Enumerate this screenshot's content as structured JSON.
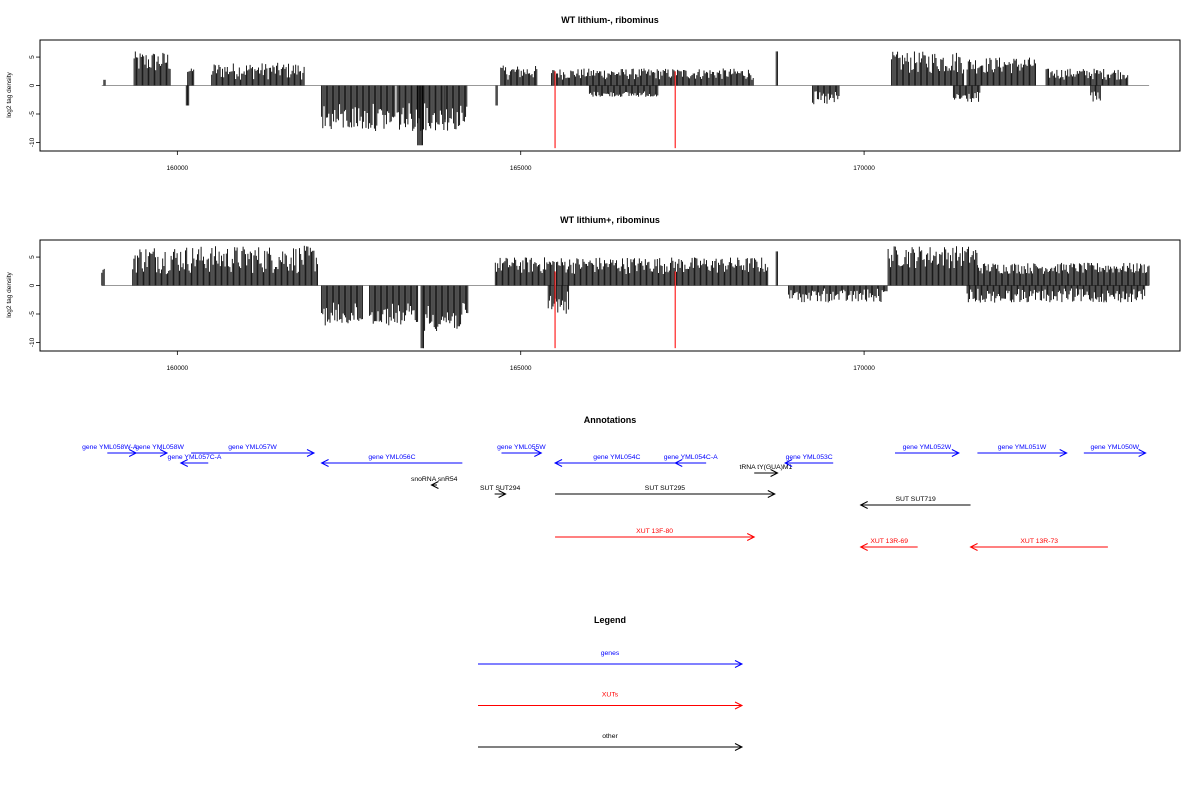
{
  "panels": [
    {
      "title": "WT lithium-, ribominus",
      "ylabel": "log2 tag density",
      "x_ticks": [
        160000,
        165000,
        170000
      ],
      "y_ticks": [
        5,
        0,
        -5,
        -10
      ]
    },
    {
      "title": "WT lithium+, ribominus",
      "ylabel": "log2 tag density",
      "x_ticks": [
        160000,
        165000,
        170000
      ],
      "y_ticks": [
        5,
        0,
        -5,
        -10
      ]
    }
  ],
  "annotations": {
    "title": "Annotations",
    "items": [
      {
        "label": "gene YML058W-A",
        "kind": "gene",
        "strand": "+",
        "start": 158980,
        "end": 159400
      },
      {
        "label": "gene YML058W",
        "kind": "gene",
        "strand": "+",
        "start": 159400,
        "end": 159850
      },
      {
        "label": "gene YML057W",
        "kind": "gene",
        "strand": "+",
        "start": 160200,
        "end": 161990
      },
      {
        "label": "gene YML057C-A",
        "kind": "gene",
        "strand": "-",
        "start": 160050,
        "end": 160450
      },
      {
        "label": "gene YML056C",
        "kind": "gene",
        "strand": "-",
        "start": 162100,
        "end": 164150
      },
      {
        "label": "snoRNA snR54",
        "kind": "other",
        "strand": "-",
        "start": 163700,
        "end": 163780
      },
      {
        "label": "SUT SUT294",
        "kind": "other",
        "strand": "+",
        "start": 164620,
        "end": 164780
      },
      {
        "label": "gene YML055W",
        "kind": "gene",
        "strand": "+",
        "start": 164720,
        "end": 165300
      },
      {
        "label": "gene YML054C",
        "kind": "gene",
        "strand": "-",
        "start": 165500,
        "end": 167300
      },
      {
        "label": "gene YML054C-A",
        "kind": "gene",
        "strand": "-",
        "start": 167250,
        "end": 167700
      },
      {
        "label": "SUT SUT295",
        "kind": "other",
        "strand": "+",
        "start": 165500,
        "end": 168700
      },
      {
        "label": "tRNA tY(GUA)M1",
        "kind": "other",
        "strand": "+",
        "start": 168400,
        "end": 168740
      },
      {
        "label": "gene YML053C",
        "kind": "gene",
        "strand": "-",
        "start": 168850,
        "end": 169550
      },
      {
        "label": "SUT SUT719",
        "kind": "other",
        "strand": "-",
        "start": 169950,
        "end": 171550
      },
      {
        "label": "XUT 13F-80",
        "kind": "xut",
        "strand": "+",
        "start": 165500,
        "end": 168400
      },
      {
        "label": "XUT 13R-69",
        "kind": "xut",
        "strand": "-",
        "start": 169950,
        "end": 170780
      },
      {
        "label": "XUT 13R-73",
        "kind": "xut",
        "strand": "-",
        "start": 171550,
        "end": 173550
      },
      {
        "label": "gene YML052W",
        "kind": "gene",
        "strand": "+",
        "start": 170450,
        "end": 171380
      },
      {
        "label": "gene YML051W",
        "kind": "gene",
        "strand": "+",
        "start": 171650,
        "end": 172950
      },
      {
        "label": "gene YML050W",
        "kind": "gene",
        "strand": "+",
        "start": 173200,
        "end": 174100
      }
    ]
  },
  "legend": {
    "title": "Legend",
    "entries": [
      {
        "label": "genes",
        "kind": "gene"
      },
      {
        "label": "XUTs",
        "kind": "xut"
      },
      {
        "label": "other",
        "kind": "other"
      }
    ]
  },
  "colors": {
    "gene": "#0000ff",
    "xut": "#ff0000",
    "other": "#000000",
    "density_bar": "#000000",
    "highlight_line": "#ff3333",
    "baseline": "#999999"
  },
  "chart_data": [
    {
      "type": "bar",
      "title": "WT lithium-, ribominus",
      "ylabel": "log2 tag density",
      "xlim": [
        158000,
        174600
      ],
      "ylim": [
        -11.5,
        8
      ],
      "x_ticks": [
        160000,
        165000,
        170000
      ],
      "y_ticks": [
        5,
        0,
        -5,
        -10
      ],
      "highlight_positions": [
        165500,
        167250
      ],
      "highlight_range": [
        -11,
        2.5
      ],
      "series": [
        {
          "strand": "+",
          "segments": [
            {
              "x": [
                158930,
                158960
              ],
              "y": [
                1,
                1
              ]
            },
            {
              "x": [
                159370,
                159900
              ],
              "y": [
                2,
                6
              ]
            },
            {
              "x": [
                160150,
                160250
              ],
              "y": [
                2,
                3
              ]
            },
            {
              "x": [
                160500,
                161850
              ],
              "y": [
                1,
                4
              ]
            },
            {
              "x": [
                164710,
                165250
              ],
              "y": [
                1,
                3.5
              ]
            },
            {
              "x": [
                165450,
                168400
              ],
              "y": [
                1,
                3
              ]
            },
            {
              "x": [
                168720,
                168750
              ],
              "y": [
                6,
                6
              ]
            },
            {
              "x": [
                170400,
                171450
              ],
              "y": [
                2,
                6
              ]
            },
            {
              "x": [
                171500,
                172500
              ],
              "y": [
                2,
                5
              ]
            },
            {
              "x": [
                172650,
                173850
              ],
              "y": [
                1,
                3
              ]
            }
          ]
        },
        {
          "strand": "-",
          "segments": [
            {
              "x": [
                160130,
                160170
              ],
              "y": [
                -3.5,
                -3.5
              ]
            },
            {
              "x": [
                162100,
                163170
              ],
              "y": [
                -3,
                -8
              ]
            },
            {
              "x": [
                163200,
                163900
              ],
              "y": [
                -3,
                -8
              ]
            },
            {
              "x": [
                163500,
                163570
              ],
              "y": [
                -10.5,
                -10.5
              ]
            },
            {
              "x": [
                163900,
                164230
              ],
              "y": [
                -3,
                -8
              ]
            },
            {
              "x": [
                164640,
                164660
              ],
              "y": [
                -3.5,
                -3.5
              ]
            },
            {
              "x": [
                166000,
                167000
              ],
              "y": [
                -1,
                -2
              ]
            },
            {
              "x": [
                169250,
                169650
              ],
              "y": [
                -1,
                -3.5
              ]
            },
            {
              "x": [
                171300,
                171700
              ],
              "y": [
                -1,
                -3
              ]
            },
            {
              "x": [
                173300,
                173440
              ],
              "y": [
                -1,
                -3
              ]
            }
          ]
        }
      ]
    },
    {
      "type": "bar",
      "title": "WT lithium+, ribominus",
      "ylabel": "log2 tag density",
      "xlim": [
        158000,
        174600
      ],
      "ylim": [
        -11.5,
        8
      ],
      "x_ticks": [
        160000,
        165000,
        170000
      ],
      "y_ticks": [
        5,
        0,
        -5,
        -10
      ],
      "highlight_positions": [
        165500,
        167250
      ],
      "highlight_range": [
        -11,
        2.5
      ],
      "series": [
        {
          "strand": "+",
          "segments": [
            {
              "x": [
                158900,
                158950
              ],
              "y": [
                2,
                3
              ]
            },
            {
              "x": [
                159350,
                162050
              ],
              "y": [
                2,
                7
              ]
            },
            {
              "x": [
                164630,
                168600
              ],
              "y": [
                2,
                5
              ]
            },
            {
              "x": [
                168720,
                168750
              ],
              "y": [
                6,
                6
              ]
            },
            {
              "x": [
                170350,
                171650
              ],
              "y": [
                3,
                7
              ]
            },
            {
              "x": [
                171650,
                174150
              ],
              "y": [
                2,
                4
              ]
            }
          ]
        },
        {
          "strand": "-",
          "segments": [
            {
              "x": [
                162100,
                162700
              ],
              "y": [
                -3,
                -7
              ]
            },
            {
              "x": [
                162800,
                163500
              ],
              "y": [
                -3,
                -7
              ]
            },
            {
              "x": [
                163550,
                163600
              ],
              "y": [
                -11,
                -11
              ]
            },
            {
              "x": [
                163600,
                164230
              ],
              "y": [
                -3,
                -8
              ]
            },
            {
              "x": [
                165400,
                165700
              ],
              "y": [
                -1,
                -5
              ]
            },
            {
              "x": [
                168900,
                170350
              ],
              "y": [
                -0.5,
                -3
              ]
            },
            {
              "x": [
                171500,
                174100
              ],
              "y": [
                -0.5,
                -3
              ]
            }
          ]
        }
      ]
    }
  ]
}
